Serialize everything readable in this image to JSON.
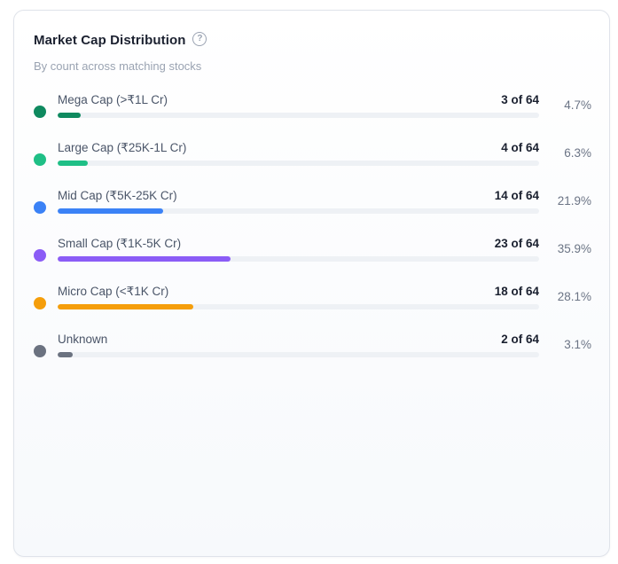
{
  "card": {
    "title": "Market Cap Distribution",
    "subtitle": "By count across matching stocks",
    "help_icon": "question-circle-icon"
  },
  "rows": [
    {
      "label": "Mega Cap (>₹1L Cr)",
      "count": "3 of 64",
      "percent": "4.7%",
      "fraction": 0.047,
      "color": "#0f8a5f"
    },
    {
      "label": "Large Cap (₹25K-1L Cr)",
      "count": "4 of 64",
      "percent": "6.3%",
      "fraction": 0.063,
      "color": "#1fbf86"
    },
    {
      "label": "Mid Cap (₹5K-25K Cr)",
      "count": "14 of 64",
      "percent": "21.9%",
      "fraction": 0.219,
      "color": "#3b82f6"
    },
    {
      "label": "Small Cap (₹1K-5K Cr)",
      "count": "23 of 64",
      "percent": "35.9%",
      "fraction": 0.359,
      "color": "#8b5cf6"
    },
    {
      "label": "Micro Cap (<₹1K Cr)",
      "count": "18 of 64",
      "percent": "28.1%",
      "fraction": 0.281,
      "color": "#f59e0b"
    },
    {
      "label": "Unknown",
      "count": "2 of 64",
      "percent": "3.1%",
      "fraction": 0.031,
      "color": "#6b7280"
    }
  ]
}
